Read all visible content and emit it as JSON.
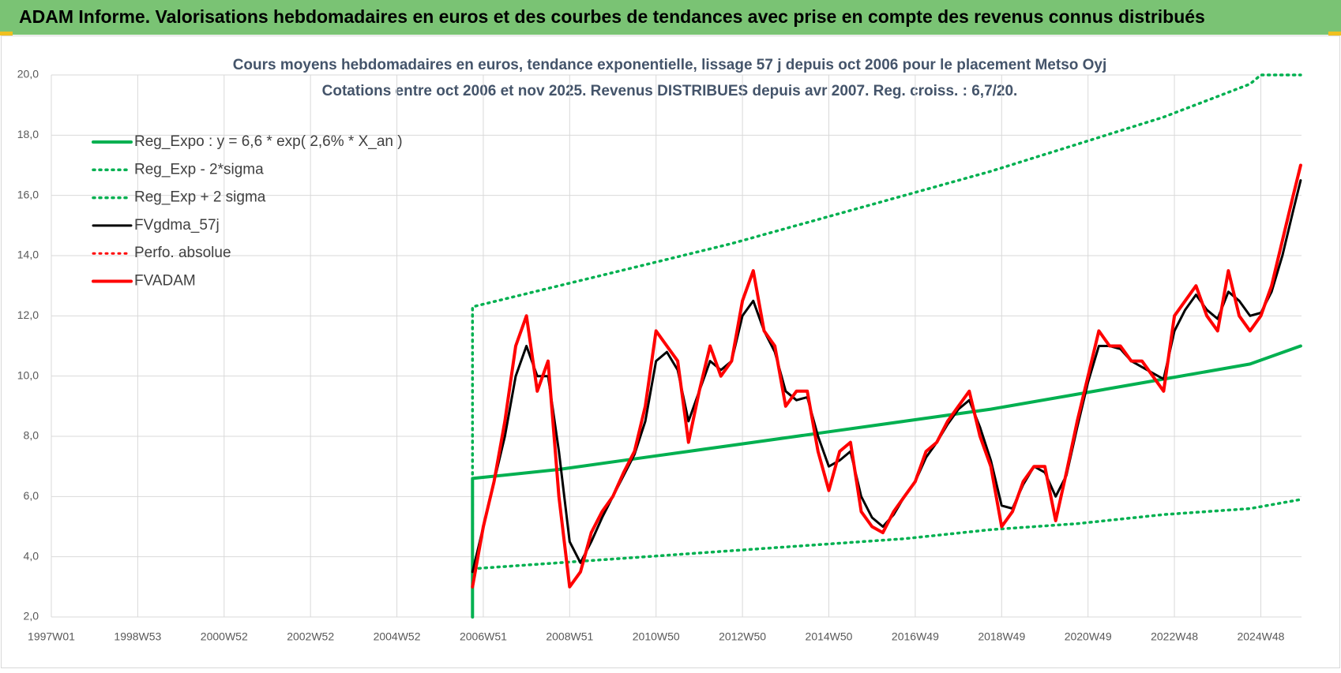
{
  "chart_data": {
    "type": "line",
    "header": "ADAM Informe. Valorisations hebdomadaires en euros et des courbes de tendances avec prise en compte des revenus connus distribués",
    "title": "Cours moyens hebdomadaires en euros, tendance exponentielle, lissage 57 j depuis oct 2006 pour le placement Metso Oyj",
    "subtitle": "Cotations entre oct 2006 et nov 2025. Revenus DISTRIBUES depuis avr 2007. Reg. croiss. : 6,7/20.",
    "xlim": [
      0,
      1505
    ],
    "xticks": [
      {
        "value": 0,
        "label": "1997W01"
      },
      {
        "value": 104,
        "label": "1998W53"
      },
      {
        "value": 208,
        "label": "2000W52"
      },
      {
        "value": 312,
        "label": "2002W52"
      },
      {
        "value": 416,
        "label": "2004W52"
      },
      {
        "value": 520,
        "label": "2006W51"
      },
      {
        "value": 624,
        "label": "2008W51"
      },
      {
        "value": 728,
        "label": "2010W50"
      },
      {
        "value": 832,
        "label": "2012W50"
      },
      {
        "value": 936,
        "label": "2014W50"
      },
      {
        "value": 1040,
        "label": "2016W49"
      },
      {
        "value": 1144,
        "label": "2018W49"
      },
      {
        "value": 1248,
        "label": "2020W49"
      },
      {
        "value": 1352,
        "label": "2022W48"
      },
      {
        "value": 1456,
        "label": "2024W48"
      }
    ],
    "ylim": [
      2,
      20
    ],
    "yticks": [
      {
        "value": 2,
        "label": "2,0"
      },
      {
        "value": 4,
        "label": "4,0"
      },
      {
        "value": 6,
        "label": "6,0"
      },
      {
        "value": 8,
        "label": "8,0"
      },
      {
        "value": 10,
        "label": "10,0"
      },
      {
        "value": 12,
        "label": "12,0"
      },
      {
        "value": 14,
        "label": "14,0"
      },
      {
        "value": 16,
        "label": "16,0"
      },
      {
        "value": 18,
        "label": "18,0"
      },
      {
        "value": 20,
        "label": "20,0"
      }
    ],
    "grid": true,
    "series": [
      {
        "name": "Reg_Expo : y = 6,6 * exp( 2,6% *  X_an )",
        "color": "#00b050",
        "style": "solid",
        "width": 4,
        "x": [
          507,
          507,
          611,
          715,
          819,
          923,
          1027,
          1131,
          1235,
          1339,
          1443,
          1504
        ],
        "values": [
          2.0,
          6.6,
          6.9,
          7.3,
          7.7,
          8.1,
          8.5,
          8.9,
          9.4,
          9.9,
          10.4,
          11.0
        ]
      },
      {
        "name": "Reg_Exp - 2*sigma",
        "color": "#00b050",
        "style": "dotted",
        "width": 3.5,
        "x": [
          507,
          611,
          715,
          819,
          923,
          1027,
          1131,
          1235,
          1339,
          1443,
          1504
        ],
        "values": [
          3.6,
          3.8,
          4.0,
          4.2,
          4.4,
          4.6,
          4.9,
          5.1,
          5.4,
          5.6,
          5.9
        ]
      },
      {
        "name": "Reg_Exp + 2 sigma",
        "color": "#00b050",
        "style": "dotted",
        "width": 3.5,
        "x": [
          507,
          507,
          611,
          715,
          819,
          923,
          1027,
          1131,
          1235,
          1339,
          1443,
          1456,
          1504
        ],
        "values": [
          3.6,
          12.3,
          13.0,
          13.7,
          14.4,
          15.2,
          16.0,
          16.8,
          17.7,
          18.6,
          19.7,
          20.0,
          20.0
        ]
      },
      {
        "name": "FVgdma_57j",
        "color": "#000000",
        "style": "solid",
        "width": 3,
        "x": [
          507,
          520,
          533,
          546,
          559,
          572,
          585,
          598,
          611,
          624,
          637,
          650,
          663,
          676,
          689,
          702,
          715,
          728,
          741,
          754,
          767,
          780,
          793,
          806,
          819,
          832,
          845,
          858,
          871,
          884,
          897,
          910,
          923,
          936,
          949,
          962,
          975,
          988,
          1001,
          1014,
          1027,
          1040,
          1053,
          1066,
          1079,
          1092,
          1105,
          1118,
          1131,
          1144,
          1157,
          1170,
          1183,
          1196,
          1209,
          1222,
          1235,
          1248,
          1261,
          1274,
          1287,
          1300,
          1313,
          1326,
          1339,
          1352,
          1365,
          1378,
          1391,
          1404,
          1417,
          1430,
          1443,
          1456,
          1469,
          1482,
          1495,
          1504
        ],
        "values": [
          3.5,
          5.0,
          6.5,
          8.0,
          10.0,
          11.0,
          10.0,
          10.0,
          7.5,
          4.5,
          3.8,
          4.5,
          5.3,
          6.0,
          6.7,
          7.4,
          8.5,
          10.5,
          10.8,
          10.2,
          8.5,
          9.5,
          10.5,
          10.2,
          10.5,
          12.0,
          12.5,
          11.5,
          10.8,
          9.5,
          9.2,
          9.3,
          8.0,
          7.0,
          7.2,
          7.5,
          6.0,
          5.3,
          5.0,
          5.4,
          6.0,
          6.5,
          7.3,
          7.8,
          8.4,
          8.9,
          9.2,
          8.3,
          7.2,
          5.7,
          5.6,
          6.4,
          7.0,
          6.8,
          6.0,
          6.7,
          8.3,
          9.8,
          11.0,
          11.0,
          10.9,
          10.5,
          10.3,
          10.1,
          9.9,
          11.5,
          12.2,
          12.7,
          12.2,
          11.9,
          12.8,
          12.5,
          12.0,
          12.1,
          12.8,
          14.0,
          15.5,
          16.5
        ]
      },
      {
        "name": "Perfo. absolue",
        "color": "#ff0000",
        "style": "dotted",
        "width": 3,
        "x": [
          507,
          520,
          533,
          546,
          559,
          572,
          585,
          598,
          611,
          624,
          637,
          650,
          663,
          676,
          689,
          702,
          715,
          728,
          741,
          754,
          767,
          780,
          793,
          806,
          819,
          832,
          845,
          858,
          871,
          884,
          897,
          910,
          923,
          936,
          949,
          962,
          975,
          988,
          1001,
          1014,
          1027,
          1040,
          1053,
          1066,
          1079,
          1092,
          1105,
          1118,
          1131,
          1144,
          1157,
          1170,
          1183,
          1196,
          1209,
          1222,
          1235,
          1248,
          1261,
          1274,
          1287,
          1300,
          1313,
          1326,
          1339,
          1352,
          1365,
          1378,
          1391,
          1404,
          1417,
          1430,
          1443,
          1456,
          1469,
          1482,
          1495,
          1504
        ],
        "values": [
          3.0,
          5.0,
          6.5,
          8.5,
          11.0,
          12.0,
          9.5,
          10.5,
          6.0,
          3.0,
          3.5,
          4.8,
          5.5,
          6.0,
          6.8,
          7.5,
          9.0,
          11.5,
          11.0,
          10.5,
          7.8,
          9.5,
          11.0,
          10.0,
          10.5,
          12.5,
          13.5,
          11.5,
          11.0,
          9.0,
          9.5,
          9.5,
          7.5,
          6.2,
          7.5,
          7.8,
          5.5,
          5.0,
          4.8,
          5.5,
          6.0,
          6.5,
          7.5,
          7.8,
          8.5,
          9.0,
          9.5,
          8.0,
          7.0,
          5.0,
          5.5,
          6.5,
          7.0,
          7.0,
          5.2,
          6.8,
          8.5,
          10.0,
          11.5,
          11.0,
          11.0,
          10.5,
          10.5,
          10.0,
          9.5,
          12.0,
          12.5,
          13.0,
          12.0,
          11.5,
          13.5,
          12.0,
          11.5,
          12.0,
          13.0,
          14.5,
          16.0,
          17.0
        ]
      },
      {
        "name": "FVADAM",
        "color": "#ff0000",
        "style": "solid",
        "width": 4,
        "x": [
          507,
          520,
          533,
          546,
          559,
          572,
          585,
          598,
          611,
          624,
          637,
          650,
          663,
          676,
          689,
          702,
          715,
          728,
          741,
          754,
          767,
          780,
          793,
          806,
          819,
          832,
          845,
          858,
          871,
          884,
          897,
          910,
          923,
          936,
          949,
          962,
          975,
          988,
          1001,
          1014,
          1027,
          1040,
          1053,
          1066,
          1079,
          1092,
          1105,
          1118,
          1131,
          1144,
          1157,
          1170,
          1183,
          1196,
          1209,
          1222,
          1235,
          1248,
          1261,
          1274,
          1287,
          1300,
          1313,
          1326,
          1339,
          1352,
          1365,
          1378,
          1391,
          1404,
          1417,
          1430,
          1443,
          1456,
          1469,
          1482,
          1495,
          1504
        ],
        "values": [
          3.0,
          5.0,
          6.5,
          8.5,
          11.0,
          12.0,
          9.5,
          10.5,
          6.0,
          3.0,
          3.5,
          4.8,
          5.5,
          6.0,
          6.8,
          7.5,
          9.0,
          11.5,
          11.0,
          10.5,
          7.8,
          9.5,
          11.0,
          10.0,
          10.5,
          12.5,
          13.5,
          11.5,
          11.0,
          9.0,
          9.5,
          9.5,
          7.5,
          6.2,
          7.5,
          7.8,
          5.5,
          5.0,
          4.8,
          5.5,
          6.0,
          6.5,
          7.5,
          7.8,
          8.5,
          9.0,
          9.5,
          8.0,
          7.0,
          5.0,
          5.5,
          6.5,
          7.0,
          7.0,
          5.2,
          6.8,
          8.5,
          10.0,
          11.5,
          11.0,
          11.0,
          10.5,
          10.5,
          10.0,
          9.5,
          12.0,
          12.5,
          13.0,
          12.0,
          11.5,
          13.5,
          12.0,
          11.5,
          12.0,
          13.0,
          14.5,
          16.0,
          17.0
        ]
      }
    ]
  }
}
